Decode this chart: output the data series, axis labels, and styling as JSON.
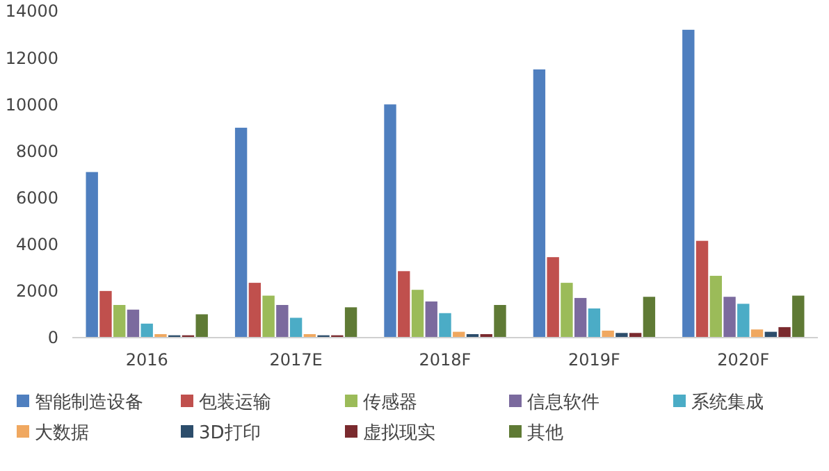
{
  "chart_data": {
    "type": "bar",
    "categories": [
      "2016",
      "2017E",
      "2018F",
      "2019F",
      "2020F"
    ],
    "ylim": [
      0,
      14000
    ],
    "yticks": [
      0,
      2000,
      4000,
      6000,
      8000,
      10000,
      12000,
      14000
    ],
    "grid": false,
    "legend": "bottom",
    "series": [
      {
        "name": "智能制造设备",
        "color": "#4f7fbf",
        "values": [
          7100,
          9000,
          10000,
          11500,
          13200
        ]
      },
      {
        "name": "包装运输",
        "color": "#c0504d",
        "values": [
          2000,
          2350,
          2850,
          3450,
          4150
        ]
      },
      {
        "name": "传感器",
        "color": "#9bbb59",
        "values": [
          1400,
          1800,
          2050,
          2350,
          2650
        ]
      },
      {
        "name": "信息软件",
        "color": "#7b6a9e",
        "values": [
          1200,
          1400,
          1550,
          1700,
          1750
        ]
      },
      {
        "name": "系统集成",
        "color": "#4bacc6",
        "values": [
          600,
          850,
          1050,
          1250,
          1450
        ]
      },
      {
        "name": "大数据",
        "color": "#f0a860",
        "values": [
          150,
          150,
          250,
          300,
          350
        ]
      },
      {
        "name": "3D打印",
        "color": "#2c4d6b",
        "values": [
          100,
          100,
          150,
          200,
          250
        ]
      },
      {
        "name": "虚拟现实",
        "color": "#7a2a2e",
        "values": [
          100,
          100,
          150,
          200,
          450
        ]
      },
      {
        "name": "其他",
        "color": "#5f7a35",
        "values": [
          1000,
          1300,
          1400,
          1750,
          1800
        ]
      }
    ]
  }
}
